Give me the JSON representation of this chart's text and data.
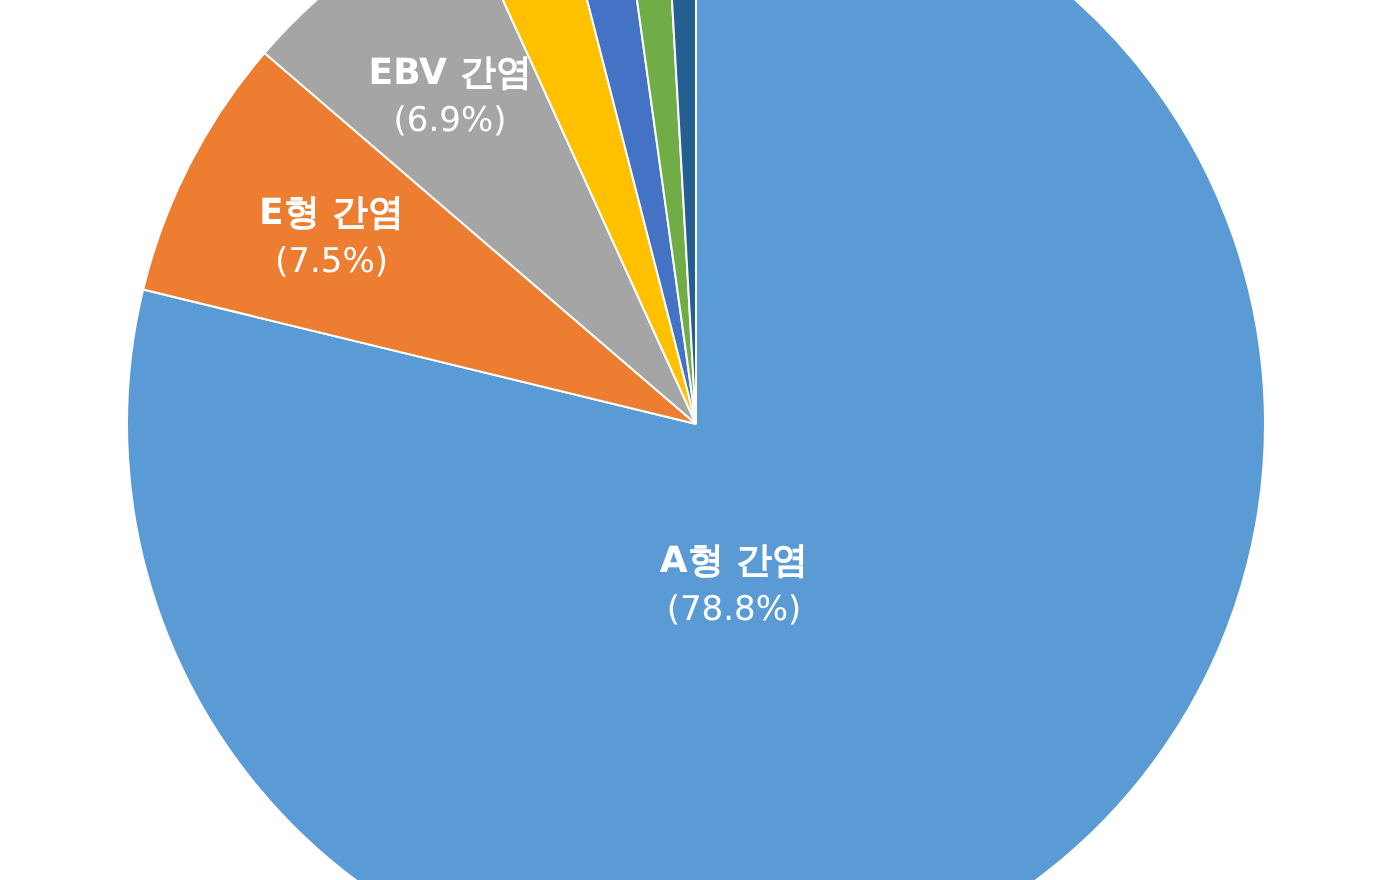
{
  "chart_data": {
    "type": "pie",
    "categories": [
      "A형 간염",
      "E형 간염",
      "EBV 간염",
      null,
      null,
      null,
      null
    ],
    "values": [
      78.8,
      7.5,
      6.9,
      2.8,
      1.8,
      1.3,
      0.9
    ],
    "value_labels": [
      "(78.8%)",
      "(7.5%)",
      "(6.9%)",
      null,
      null,
      null,
      null
    ],
    "colors": [
      "#5b9bd5",
      "#ed7d31",
      "#a5a5a5",
      "#ffc000",
      "#4472c4",
      "#70ad47",
      "#255e91"
    ],
    "legend": false
  }
}
